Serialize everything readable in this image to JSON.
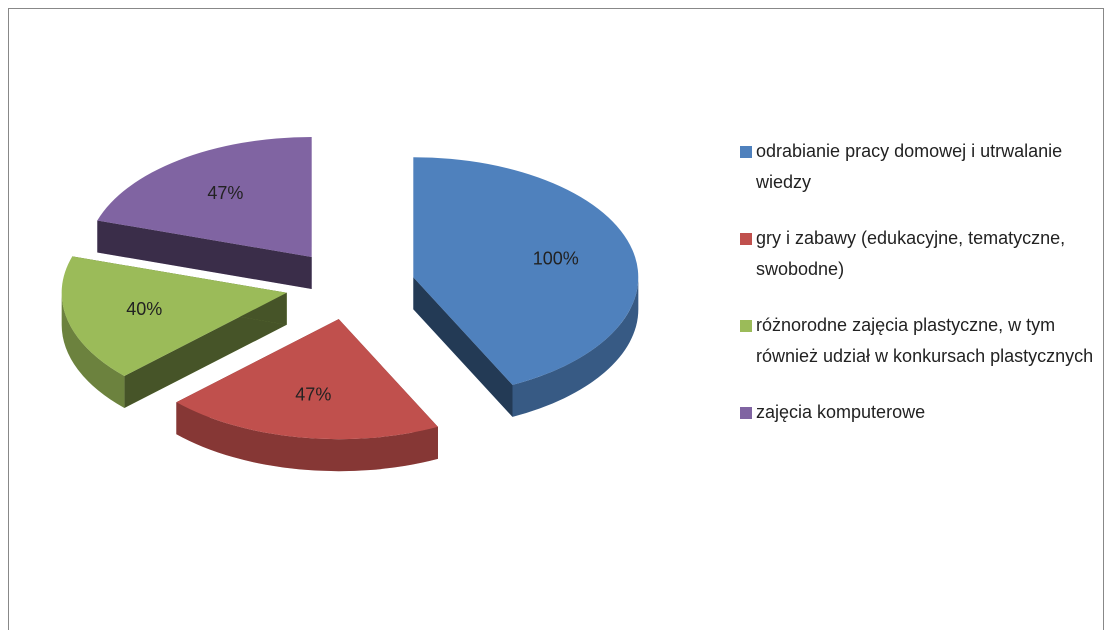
{
  "chart_data": {
    "type": "pie3d",
    "categories": [
      "odrabianie pracy domowej i utrwalanie wiedzy",
      "gry i zabawy (edukacyjne, tematyczne, swobodne)",
      "różnorodne zajęcia plastyczne, w tym również udział w konkursach plastycznych",
      "zajęcia komputerowe"
    ],
    "values": [
      100,
      47,
      40,
      47
    ],
    "value_labels": [
      "100%",
      "47%",
      "40%",
      "47%"
    ],
    "colors": [
      "#4f81bd",
      "#c0504d",
      "#9bbb59",
      "#8064a2"
    ],
    "legend": "right"
  }
}
